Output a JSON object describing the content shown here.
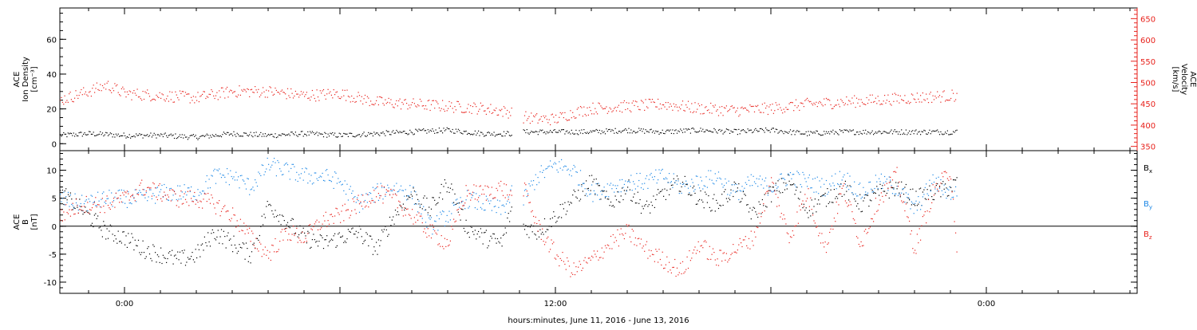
{
  "chart_data": [
    {
      "type": "scatter",
      "panel": "top",
      "xlabel": "hours:minutes, June 11, 2016 - June 13, 2016",
      "x_ticks": [
        "0:00",
        "12:00",
        "0:00"
      ],
      "x_tick_hours": [
        0,
        12,
        24
      ],
      "xlim_hours": [
        -1.8,
        28.2
      ],
      "y_left": {
        "label_lines": [
          "ACE",
          "Ion Density",
          "[cm⁻³]"
        ],
        "ylim": [
          -4,
          78
        ],
        "ticks": [
          0,
          20,
          40,
          60
        ]
      },
      "y_right": {
        "label_lines": [
          "ACE",
          "Velocity",
          "[km/s]"
        ],
        "ylim": [
          340,
          675
        ],
        "ticks": [
          350,
          400,
          450,
          500,
          550,
          600,
          650
        ],
        "color": "#e8221c"
      },
      "series": [
        {
          "name": "",
          "axis": "left",
          "color": "#000000",
          "segments": [
            {
              "x": [
                -1.8,
                -1,
                0,
                1,
                2,
                3,
                4,
                5,
                6,
                7,
                8,
                9,
                10,
                10.8
              ],
              "y": [
                5,
                6,
                5,
                5,
                4,
                6,
                5,
                6,
                5,
                6,
                7,
                8,
                6,
                6
              ]
            },
            {
              "x": [
                11.1,
                12,
                13,
                14,
                15,
                16,
                17,
                18,
                19,
                20,
                21,
                22,
                23,
                23.2
              ],
              "y": [
                7,
                7,
                7,
                8,
                7,
                8,
                7,
                8,
                6,
                7,
                7,
                7,
                7,
                7
              ]
            }
          ]
        },
        {
          "name": "",
          "axis": "right",
          "color": "#e8221c",
          "segments": [
            {
              "x": [
                -1.8,
                -1,
                -0.5,
                0,
                1,
                2,
                3,
                4,
                5,
                6,
                7,
                8,
                9,
                10,
                10.8
              ],
              "y": [
                460,
                480,
                495,
                475,
                470,
                465,
                480,
                480,
                470,
                475,
                455,
                450,
                445,
                440,
                430
              ]
            },
            {
              "x": [
                11.1,
                11.5,
                12,
                12.5,
                13,
                14,
                15,
                16,
                17,
                18,
                19,
                20,
                21,
                22,
                23,
                23.2
              ],
              "y": [
                420,
                415,
                415,
                430,
                440,
                445,
                450,
                440,
                435,
                440,
                450,
                455,
                460,
                465,
                470,
                470
              ]
            }
          ]
        }
      ]
    },
    {
      "type": "scatter",
      "panel": "bottom",
      "xlabel": "hours:minutes, June 11, 2016 - June 13, 2016",
      "x_ticks": [
        "0:00",
        "12:00",
        "0:00"
      ],
      "xlim_hours": [
        -1.8,
        28.2
      ],
      "y_left": {
        "label_lines": [
          "ACE",
          "B",
          "[nT]"
        ],
        "ylim": [
          -12,
          13.5
        ],
        "ticks": [
          -10,
          -5,
          0,
          5,
          10
        ]
      },
      "zero_line": true,
      "series": [
        {
          "name": "Bx",
          "color": "#000000",
          "segments": [
            {
              "x": [
                -1.8,
                -1.2,
                -0.5,
                0,
                0.5,
                1,
                1.5,
                2,
                2.5,
                3,
                3.5,
                4,
                4.5,
                5,
                5.5,
                6,
                6.5,
                7,
                7.5,
                8,
                8.5,
                9,
                9.5,
                10,
                10.5,
                10.8
              ],
              "y": [
                6,
                3,
                -1,
                -2,
                -4,
                -5,
                -6,
                -5,
                -1,
                -3,
                -5,
                4,
                1,
                -2,
                -3,
                -2,
                -1,
                -4,
                2,
                6,
                3,
                8,
                0,
                -2,
                -3,
                4
              ]
            },
            {
              "x": [
                11.1,
                11.5,
                12,
                12.5,
                13,
                13.5,
                14,
                14.5,
                15,
                15.5,
                16,
                16.5,
                17,
                17.5,
                18,
                18.5,
                19,
                19.5,
                20,
                20.5,
                21,
                21.5,
                22,
                22.5,
                23,
                23.2
              ],
              "y": [
                0,
                -1,
                2,
                5,
                8,
                4,
                7,
                3,
                6,
                8,
                5,
                4,
                7,
                2,
                6,
                8,
                3,
                5,
                7,
                4,
                6,
                7,
                5,
                6,
                7,
                8
              ]
            }
          ]
        },
        {
          "name": "By",
          "color": "#1b87e6",
          "segments": [
            {
              "x": [
                -1.8,
                -1.2,
                -0.5,
                0,
                0.5,
                1,
                1.5,
                2,
                2.5,
                3,
                3.5,
                4,
                4.5,
                5,
                5.5,
                6,
                6.5,
                7,
                7.5,
                8,
                8.5,
                9,
                9.5,
                10,
                10.5,
                10.8
              ],
              "y": [
                5,
                4,
                5,
                5,
                5,
                6,
                6,
                6,
                9,
                9,
                7,
                11,
                10,
                9,
                9,
                8,
                4,
                6,
                7,
                6,
                0,
                2,
                5,
                4,
                3,
                6
              ]
            },
            {
              "x": [
                11.1,
                11.5,
                12,
                12.5,
                13,
                13.5,
                14,
                14.5,
                15,
                15.5,
                16,
                16.5,
                17,
                17.5,
                18,
                18.5,
                19,
                19.5,
                20,
                20.5,
                21,
                21.5,
                22,
                22.5,
                23,
                23.2
              ],
              "y": [
                5,
                9,
                11,
                10,
                6,
                7,
                8,
                8,
                9,
                7,
                8,
                9,
                6,
                8,
                7,
                9,
                8,
                7,
                9,
                6,
                8,
                7,
                3,
                8,
                6,
                6
              ]
            }
          ]
        },
        {
          "name": "Bz",
          "color": "#e8221c",
          "segments": [
            {
              "x": [
                -1.8,
                -1.2,
                -0.5,
                0,
                0.5,
                1,
                1.5,
                2,
                2.5,
                3,
                3.5,
                4,
                4.5,
                5,
                5.5,
                6,
                6.5,
                7,
                7.5,
                8,
                8.5,
                9,
                9.5,
                10,
                10.5,
                10.8
              ],
              "y": [
                2,
                4,
                4,
                5,
                7,
                6,
                5,
                5,
                4,
                2,
                -2,
                -5,
                -1,
                -2,
                1,
                2,
                4,
                6,
                5,
                2,
                -1,
                -3,
                6,
                6,
                7,
                5
              ]
            },
            {
              "x": [
                11.1,
                11.5,
                12,
                12.5,
                13,
                13.5,
                14,
                14.5,
                15,
                15.5,
                16,
                16.5,
                17,
                17.5,
                18,
                18.5,
                19,
                19.5,
                20,
                20.5,
                21,
                21.5,
                22,
                22.5,
                23,
                23.2
              ],
              "y": [
                7,
                0,
                -5,
                -8,
                -6,
                -3,
                -1,
                -4,
                -6,
                -8,
                -3,
                -6,
                -4,
                -2,
                8,
                -2,
                6,
                -4,
                7,
                -3,
                5,
                9,
                -4,
                6,
                10,
                -6
              ]
            }
          ]
        }
      ]
    }
  ]
}
